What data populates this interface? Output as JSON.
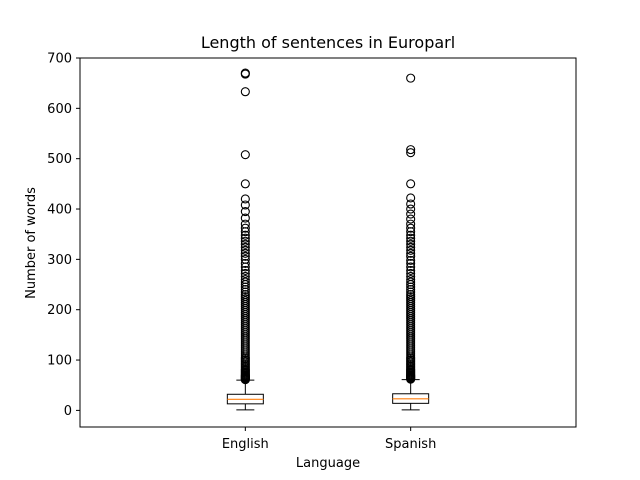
{
  "chart_data": {
    "type": "boxplot",
    "title": "Length of sentences in Europarl",
    "xlabel": "Language",
    "ylabel": "Number of words",
    "ylim": [
      -33,
      700
    ],
    "yticks": [
      0,
      100,
      200,
      300,
      400,
      500,
      600,
      700
    ],
    "grid": false,
    "colors": {
      "box": "#000000",
      "median": "#ff7f0e",
      "outlier": "#000000"
    },
    "categories": [
      "English",
      "Spanish"
    ],
    "series": [
      {
        "category": "English",
        "whisker_low": 1,
        "q1": 13,
        "median": 22,
        "q3": 32,
        "whisker_high": 60,
        "outliers": [
          61,
          62,
          63,
          64,
          65,
          66,
          67,
          68,
          69,
          70,
          72,
          74,
          76,
          78,
          80,
          82,
          85,
          88,
          91,
          94,
          97,
          100,
          103,
          106,
          110,
          114,
          118,
          122,
          126,
          130,
          134,
          138,
          142,
          146,
          150,
          154,
          158,
          162,
          166,
          170,
          174,
          178,
          182,
          186,
          190,
          194,
          198,
          202,
          206,
          210,
          214,
          218,
          222,
          226,
          230,
          235,
          240,
          245,
          250,
          255,
          260,
          266,
          272,
          278,
          285,
          292,
          300,
          306,
          312,
          318,
          324,
          330,
          336,
          342,
          348,
          355,
          362,
          370,
          382,
          395,
          408,
          420,
          450,
          508,
          633,
          668,
          670
        ]
      },
      {
        "category": "Spanish",
        "whisker_low": 1,
        "q1": 14,
        "median": 23,
        "q3": 33,
        "whisker_high": 61,
        "outliers": [
          62,
          63,
          64,
          65,
          66,
          67,
          68,
          69,
          70,
          72,
          74,
          76,
          78,
          80,
          82,
          85,
          88,
          91,
          94,
          97,
          100,
          103,
          106,
          110,
          114,
          118,
          122,
          126,
          130,
          134,
          138,
          142,
          146,
          150,
          154,
          158,
          162,
          166,
          170,
          174,
          178,
          182,
          186,
          190,
          194,
          198,
          202,
          206,
          210,
          214,
          218,
          222,
          226,
          230,
          235,
          240,
          245,
          250,
          255,
          260,
          266,
          272,
          278,
          285,
          292,
          298,
          306,
          312,
          318,
          324,
          330,
          336,
          342,
          348,
          355,
          362,
          370,
          380,
          390,
          400,
          410,
          422,
          450,
          512,
          518,
          660
        ]
      }
    ]
  }
}
